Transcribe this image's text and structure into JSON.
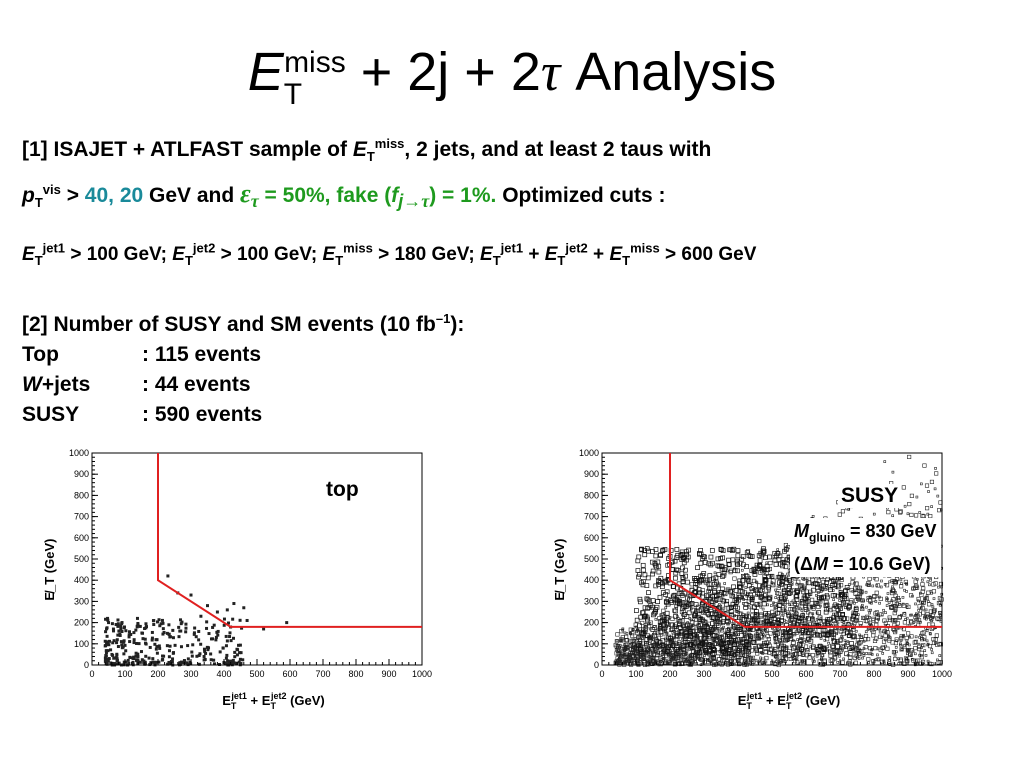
{
  "title": {
    "E": "E",
    "T": "T",
    "miss": "miss",
    "rest": "+ 2j + 2",
    "tau": "τ",
    "analysis": " Analysis"
  },
  "para1": {
    "line1_a": "[1] ISAJET + ATLFAST sample of ",
    "line1_E": "E",
    "line1_T": "T",
    "line1_miss": "miss",
    "line1_b": ",  2 jets, and at least 2 taus with",
    "line2_p": "p",
    "line2_T": "T",
    "line2_vis": "vis",
    "line2_gt": " > ",
    "line2_vals": "40, 20",
    "line2_gev": " GeV and ",
    "line2_eps": "ε",
    "line2_tau": "τ",
    "line2_eff": " = 50%,   fake (",
    "line2_f": "f",
    "line2_j": "j",
    "line2_arrow": "→",
    "line2_tau2": "τ",
    "line2_fake": ") = 1%.",
    "line2_opt": " Optimized cuts :"
  },
  "cuts": {
    "E": "E",
    "T": "T",
    "jet1": "jet1",
    "jet2": "jet2",
    "miss": "miss",
    "c1": " > 100 GeV; ",
    "c2": " > 100 GeV; ",
    "c3": " > 180 GeV; ",
    "plus": " + ",
    "c4": " > 600 GeV"
  },
  "para3": {
    "head_a": "[2] Number of SUSY and SM events (10 fb",
    "head_exp": "–1",
    "head_b": "):",
    "rows": [
      {
        "label": "Top",
        "value": ": 115 events"
      },
      {
        "label": "W",
        "label_rest": "+jets",
        "value": ":   44 events"
      },
      {
        "label": "SUSY",
        "value": " : 590 events"
      }
    ]
  },
  "plots": [
    {
      "name": "top",
      "label": "top",
      "xlabel": "E_T^jet1 + E_T^jet2 (GeV)",
      "ylabel": "E̸_T (GeV)",
      "xlim": [
        0,
        1000
      ],
      "ylim": [
        0,
        1000
      ],
      "xticks": [
        "0",
        "100",
        "200",
        "300",
        "400",
        "500",
        "600",
        "700",
        "800",
        "900",
        "1000"
      ],
      "yticks": [
        "0",
        "100",
        "200",
        "300",
        "400",
        "500",
        "600",
        "700",
        "800",
        "900",
        "1000"
      ],
      "density": "sparse"
    },
    {
      "name": "susy",
      "label": "SUSY",
      "mass_line1_M": "M",
      "mass_line1_sub": "gluino",
      "mass_line1_val": " = 830 GeV",
      "mass_line2_a": "(Δ",
      "mass_line2_M": "M",
      "mass_line2_b": " = 10.6 GeV)",
      "xlabel": "E_T^jet1 + E_T^jet2 (GeV)",
      "ylabel": "E̸_T (GeV)",
      "xlim": [
        0,
        1000
      ],
      "ylim": [
        0,
        1000
      ],
      "xticks": [
        "0",
        "100",
        "200",
        "300",
        "400",
        "500",
        "600",
        "700",
        "800",
        "900",
        "1000"
      ],
      "yticks": [
        "0",
        "100",
        "200",
        "300",
        "400",
        "500",
        "600",
        "700",
        "800",
        "900",
        "1000"
      ],
      "density": "dense"
    }
  ],
  "cut_line": {
    "color": "#e02020",
    "points": [
      [
        200,
        1000
      ],
      [
        200,
        400
      ],
      [
        420,
        180
      ],
      [
        1000,
        180
      ]
    ]
  }
}
